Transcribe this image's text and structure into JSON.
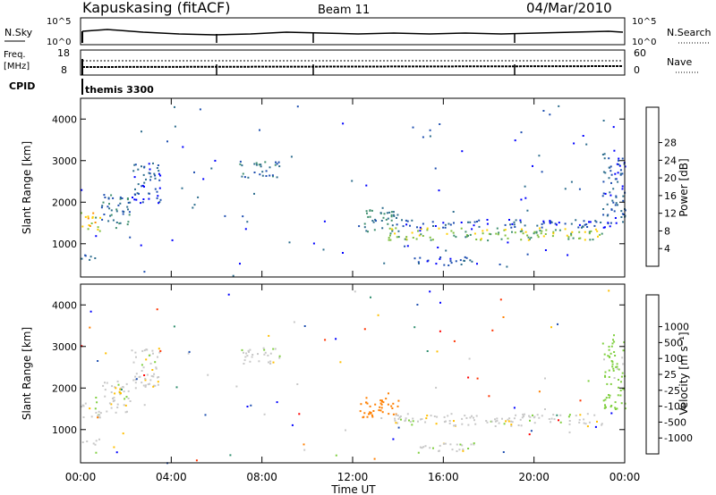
{
  "header": {
    "station": "Kapuskasing (fitACF)",
    "beam": "Beam 11",
    "date": "04/Mar/2010"
  },
  "noise_panel": {
    "left_label": "N.Sky",
    "right_label": "N.Search",
    "ticks_left": [
      "10^5",
      "10^0"
    ],
    "ticks_right": [
      "10^5",
      "10^0"
    ]
  },
  "freq_panel": {
    "left_label_1": "Freq.",
    "left_label_2": "[MHz]",
    "right_label": "Nave",
    "ticks_left": [
      "18",
      "8"
    ],
    "ticks_right": [
      "60",
      "0"
    ]
  },
  "cpid": {
    "label": "CPID",
    "value": "themis 3300"
  },
  "colors": {
    "power_scale": [
      "#0000ff",
      "#1f4fb0",
      "#2e6e8e",
      "#3f8f6f",
      "#7fbf3f",
      "#ffd000",
      "#ff9000",
      "#ff4000",
      "#ff0000"
    ],
    "velocity_scale": [
      "#ff0000",
      "#ff3300",
      "#ff7f00",
      "#ffbf00",
      "#c8c8c8",
      "#c8c8c8",
      "#7fcf3f",
      "#2e8e6e",
      "#1f4fb0",
      "#0000ff"
    ]
  },
  "chart_data": [
    {
      "type": "heatmap",
      "panel": "power",
      "ylabel": "Slant Range [km]",
      "yticks": [
        "1000",
        "2000",
        "3000",
        "4000"
      ],
      "ylim": [
        200,
        4500
      ],
      "xlim": [
        0,
        24
      ],
      "colorbar_label": "Power [dB]",
      "colorbar_ticks": [
        "4",
        "8",
        "12",
        "16",
        "20",
        "24",
        "28"
      ],
      "bands": [
        {
          "t": [
            0.0,
            0.9
          ],
          "r": [
            1300,
            1800
          ],
          "value": 20
        },
        {
          "t": [
            0.9,
            2.2
          ],
          "r": [
            1400,
            2200
          ],
          "value": 10
        },
        {
          "t": [
            0.0,
            0.8
          ],
          "r": [
            600,
            800
          ],
          "value": 8
        },
        {
          "t": [
            2.2,
            3.5
          ],
          "r": [
            2000,
            3000
          ],
          "value": 6
        },
        {
          "t": [
            7.0,
            8.8
          ],
          "r": [
            2600,
            3000
          ],
          "value": 10
        },
        {
          "t": [
            12.3,
            14.0
          ],
          "r": [
            1300,
            1900
          ],
          "value": 12
        },
        {
          "t": [
            13.5,
            23.0
          ],
          "r": [
            1100,
            1400
          ],
          "value": 18
        },
        {
          "t": [
            14.0,
            23.5
          ],
          "r": [
            1400,
            1600
          ],
          "value": 6
        },
        {
          "t": [
            14.5,
            17.5
          ],
          "r": [
            500,
            700
          ],
          "value": 6
        },
        {
          "t": [
            23.0,
            24.0
          ],
          "r": [
            1500,
            3200
          ],
          "value": 7
        }
      ]
    },
    {
      "type": "heatmap",
      "panel": "velocity",
      "ylabel": "Slant Range [km]",
      "yticks": [
        "1000",
        "2000",
        "3000",
        "4000"
      ],
      "ylim": [
        200,
        4500
      ],
      "xlim": [
        0,
        24
      ],
      "xlabel": "Time UT",
      "xticks": [
        "00:00",
        "04:00",
        "08:00",
        "12:00",
        "16:00",
        "20:00",
        "00:00"
      ],
      "colorbar_label": "Velocity [m s⁻¹]",
      "colorbar_ticks": [
        "-1000",
        "-500",
        "-100",
        "-25",
        "25",
        "100",
        "500",
        "1000"
      ],
      "bands": [
        {
          "t": [
            0.0,
            0.9
          ],
          "r": [
            1300,
            1800
          ],
          "value": 0
        },
        {
          "t": [
            0.9,
            2.2
          ],
          "r": [
            1400,
            2200
          ],
          "value": 0
        },
        {
          "t": [
            0.0,
            0.8
          ],
          "r": [
            600,
            800
          ],
          "value": 0
        },
        {
          "t": [
            2.2,
            3.5
          ],
          "r": [
            2000,
            3000
          ],
          "value": 0
        },
        {
          "t": [
            7.0,
            8.8
          ],
          "r": [
            2600,
            3000
          ],
          "value": 0
        },
        {
          "t": [
            12.3,
            14.0
          ],
          "r": [
            1300,
            1900
          ],
          "value": -150
        },
        {
          "t": [
            13.5,
            23.0
          ],
          "r": [
            1100,
            1400
          ],
          "value": 0
        },
        {
          "t": [
            14.5,
            17.5
          ],
          "r": [
            500,
            700
          ],
          "value": 0
        },
        {
          "t": [
            23.0,
            24.0
          ],
          "r": [
            1500,
            3200
          ],
          "value": 50
        }
      ]
    }
  ]
}
